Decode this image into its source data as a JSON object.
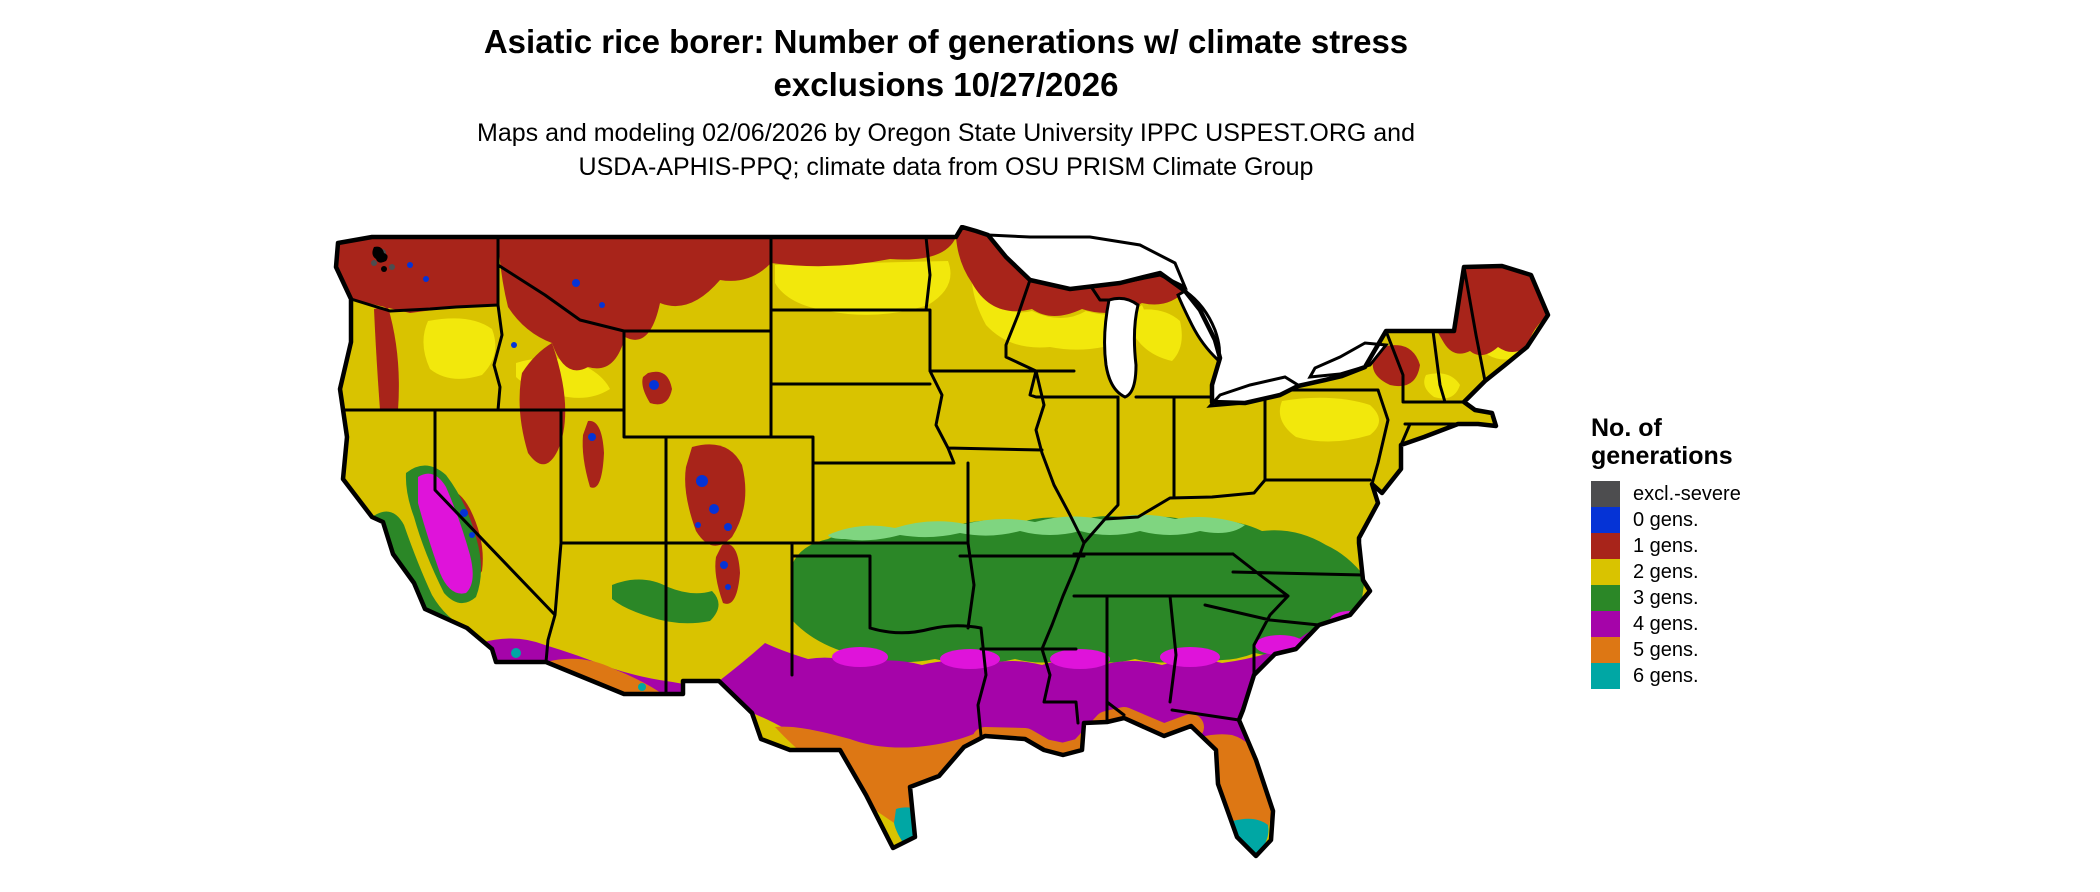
{
  "title": {
    "line1": "Asiatic rice borer: Number of generations w/ climate stress",
    "line2": "exclusions 10/27/2026"
  },
  "subtitle": {
    "line1": "Maps and modeling 02/06/2026 by Oregon State University IPPC USPEST.ORG and",
    "line2": "USDA-APHIS-PPQ; climate data from OSU PRISM Climate Group"
  },
  "legend": {
    "title_line1": "No. of",
    "title_line2": "generations",
    "items": [
      {
        "label": "excl.-severe",
        "color": "#4D4D4F"
      },
      {
        "label": "0 gens.",
        "color": "#0533D6"
      },
      {
        "label": "1 gens.",
        "color": "#A8241A"
      },
      {
        "label": "2 gens.",
        "color": "#D9C300"
      },
      {
        "label": "3 gens.",
        "color": "#2B8727"
      },
      {
        "label": "4 gens.",
        "color": "#A504A9"
      },
      {
        "label": "5 gens.",
        "color": "#DD7714"
      },
      {
        "label": "6 gens.",
        "color": "#00A7A4"
      }
    ]
  },
  "map": {
    "region": "Continental United States",
    "border_color": "#000000",
    "background_color": "#FFFFFF"
  }
}
